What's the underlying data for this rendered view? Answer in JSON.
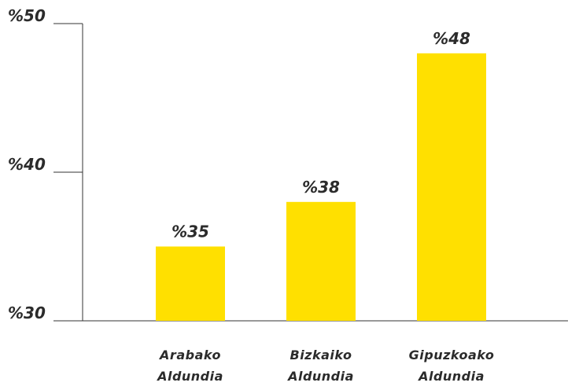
{
  "chart_data": {
    "type": "bar",
    "categories": [
      "Arabako Aldundia",
      "Bizkaiko Aldundia",
      "Gipuzkoako Aldundia"
    ],
    "values": [
      35,
      38,
      48
    ],
    "value_labels": [
      "%35",
      "%38",
      "%48"
    ],
    "color": "#ffe000",
    "ylim": [
      30,
      50
    ],
    "yticks": [
      {
        "value": 30,
        "label": "%30"
      },
      {
        "value": 40,
        "label": "%40"
      },
      {
        "value": 50,
        "label": "%50"
      }
    ]
  }
}
